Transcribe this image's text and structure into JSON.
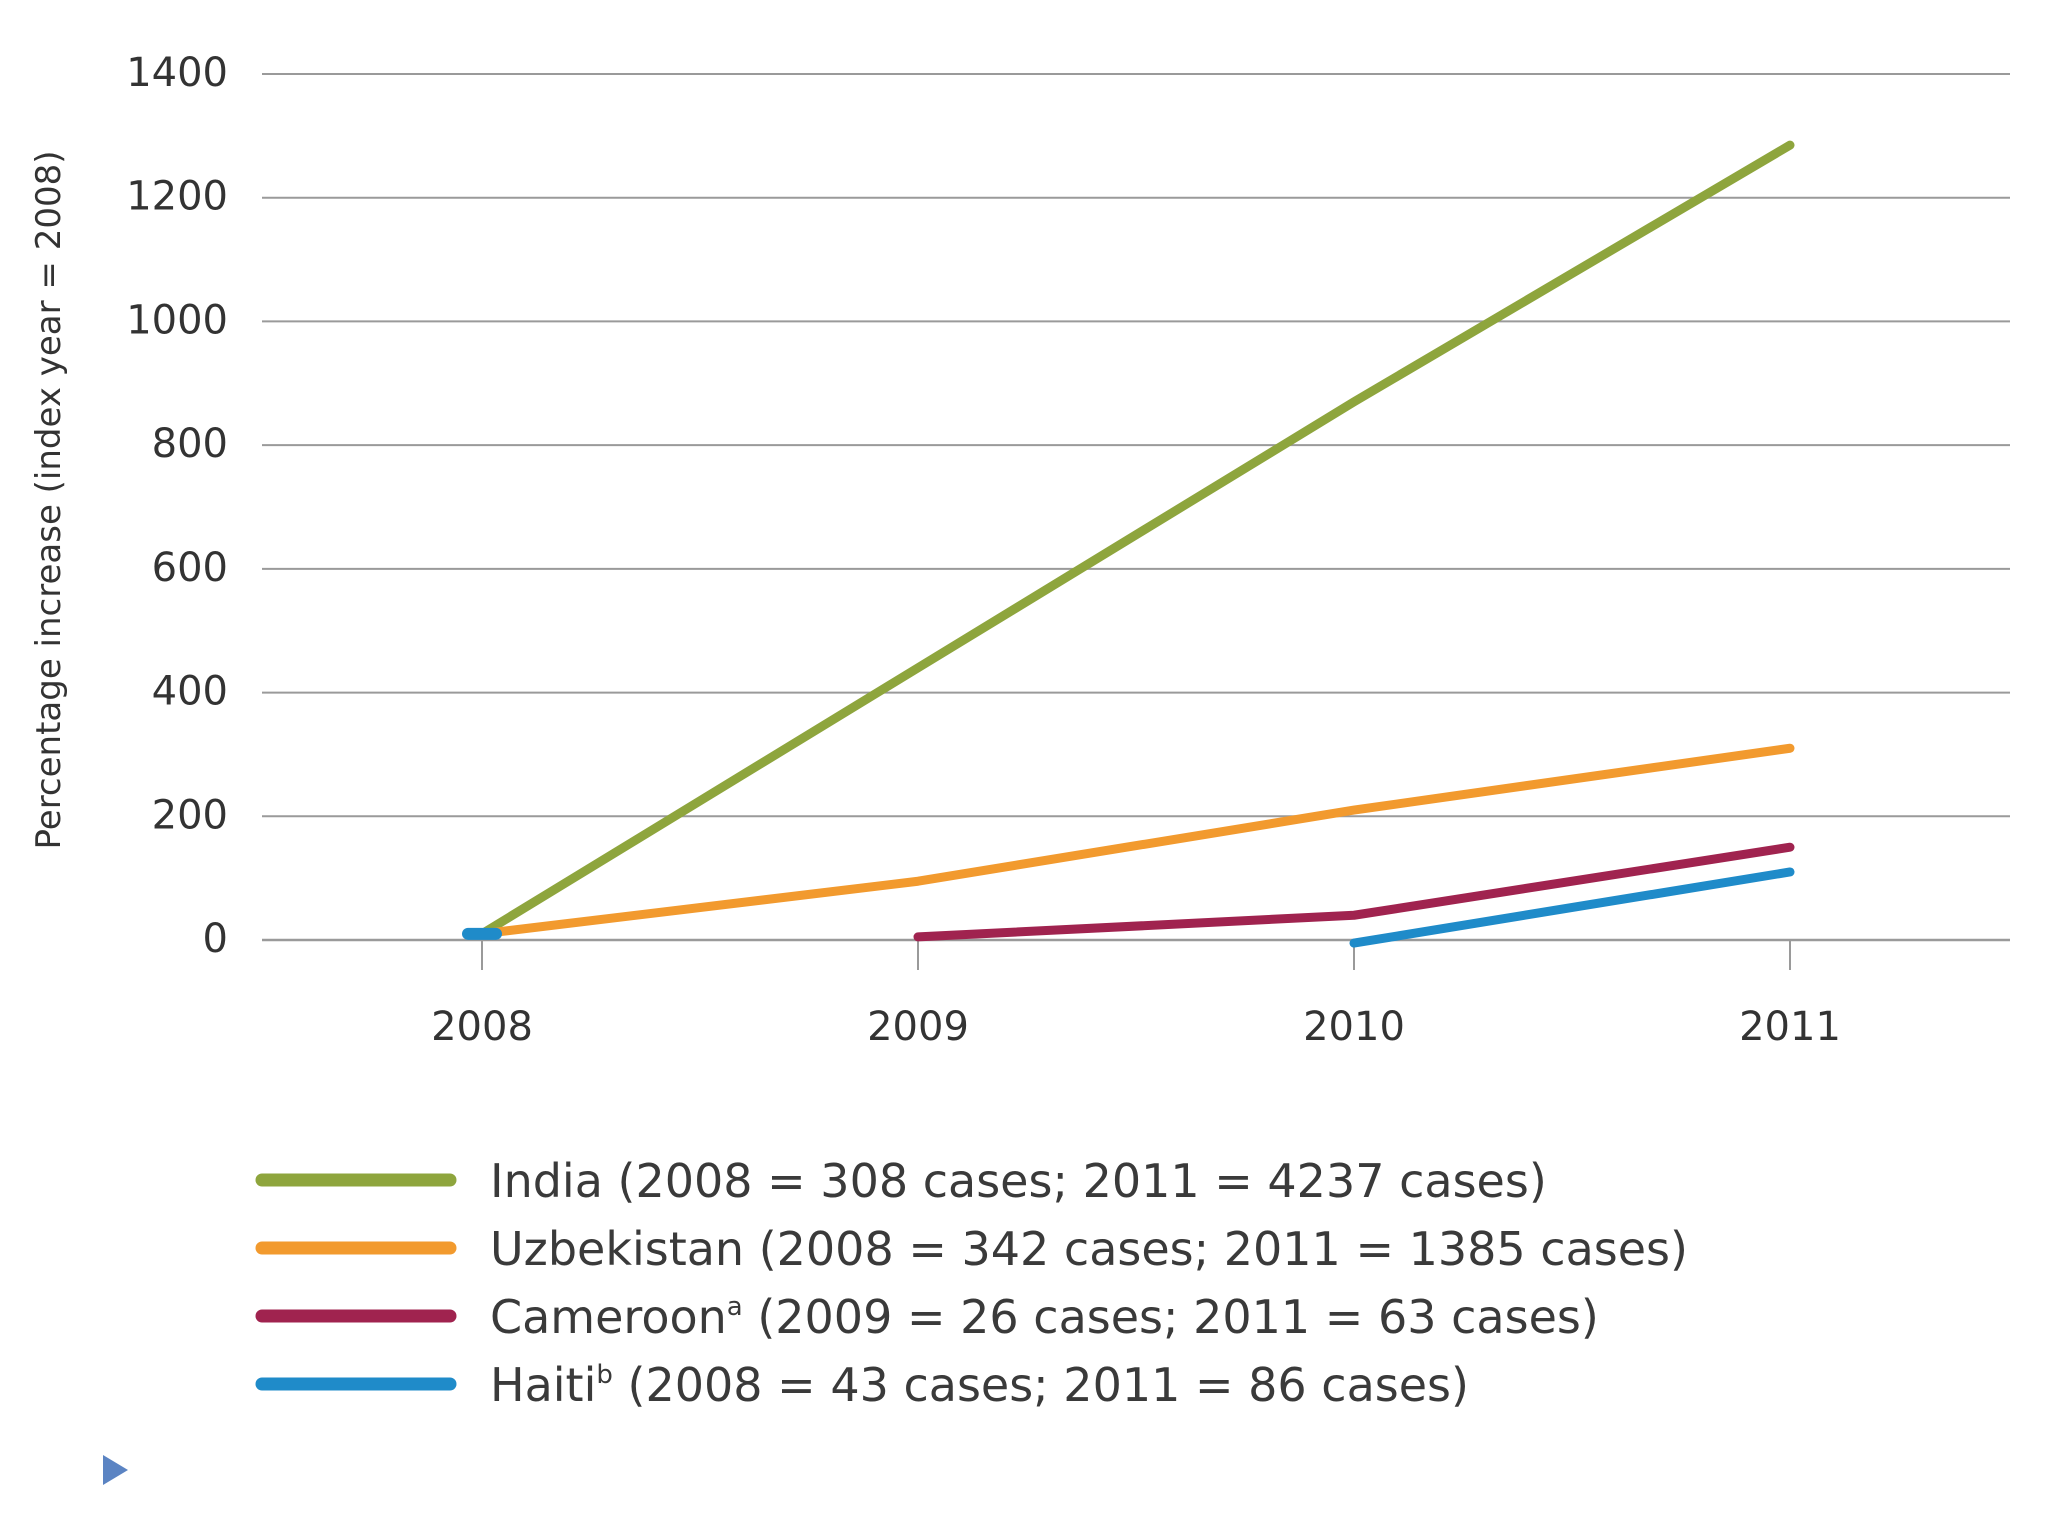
{
  "chart_data": {
    "type": "line",
    "title": "",
    "xlabel": "",
    "ylabel": "Percentage increase (index year = 2008)",
    "categories": [
      "2008",
      "2009",
      "2010",
      "2011"
    ],
    "ylim": [
      0,
      1400
    ],
    "yticks": [
      "0",
      "200",
      "400",
      "600",
      "800",
      "1000",
      "1200",
      "1400"
    ],
    "grid": true,
    "legend_position": "bottom",
    "series": [
      {
        "name": "India",
        "label_main": "India (2008 = 308 cases; 2011 = 4237 cases)",
        "label_sup": "",
        "label_rest": "",
        "color": "#8ea53d",
        "x": [
          "2008",
          "2009",
          "2010",
          "2011"
        ],
        "values": [
          10,
          440,
          870,
          1285
        ]
      },
      {
        "name": "Uzbekistan",
        "label_main": "Uzbekistan (2008 = 342 cases; 2011 = 1385 cases)",
        "label_sup": "",
        "label_rest": "",
        "color": "#f29a2e",
        "x": [
          "2008",
          "2009",
          "2010",
          "2011"
        ],
        "values": [
          10,
          95,
          210,
          310
        ]
      },
      {
        "name": "Cameroon",
        "label_main": "Cameroon",
        "label_sup": "a",
        "label_rest": " (2009 = 26 cases; 2011 = 63 cases)",
        "color": "#a0234f",
        "x": [
          "2009",
          "2010",
          "2011"
        ],
        "values": [
          5,
          40,
          150
        ]
      },
      {
        "name": "Haiti",
        "label_main": "Haiti",
        "label_sup": "b",
        "label_rest": " (2008 = 43 cases; 2011 = 86 cases)",
        "color": "#1f8bc9",
        "x": [
          "2008",
          "2010",
          "2011"
        ],
        "values": [
          10,
          -5,
          110
        ],
        "segments": [
          [
            "2008"
          ],
          [
            "2010",
            "2011"
          ]
        ]
      }
    ]
  },
  "colors": {
    "grid": "#9a9a9a",
    "axis_text": "#333333",
    "marker": "#5b84c3"
  },
  "decoration": {
    "marker_icon": "play-triangle-icon"
  }
}
